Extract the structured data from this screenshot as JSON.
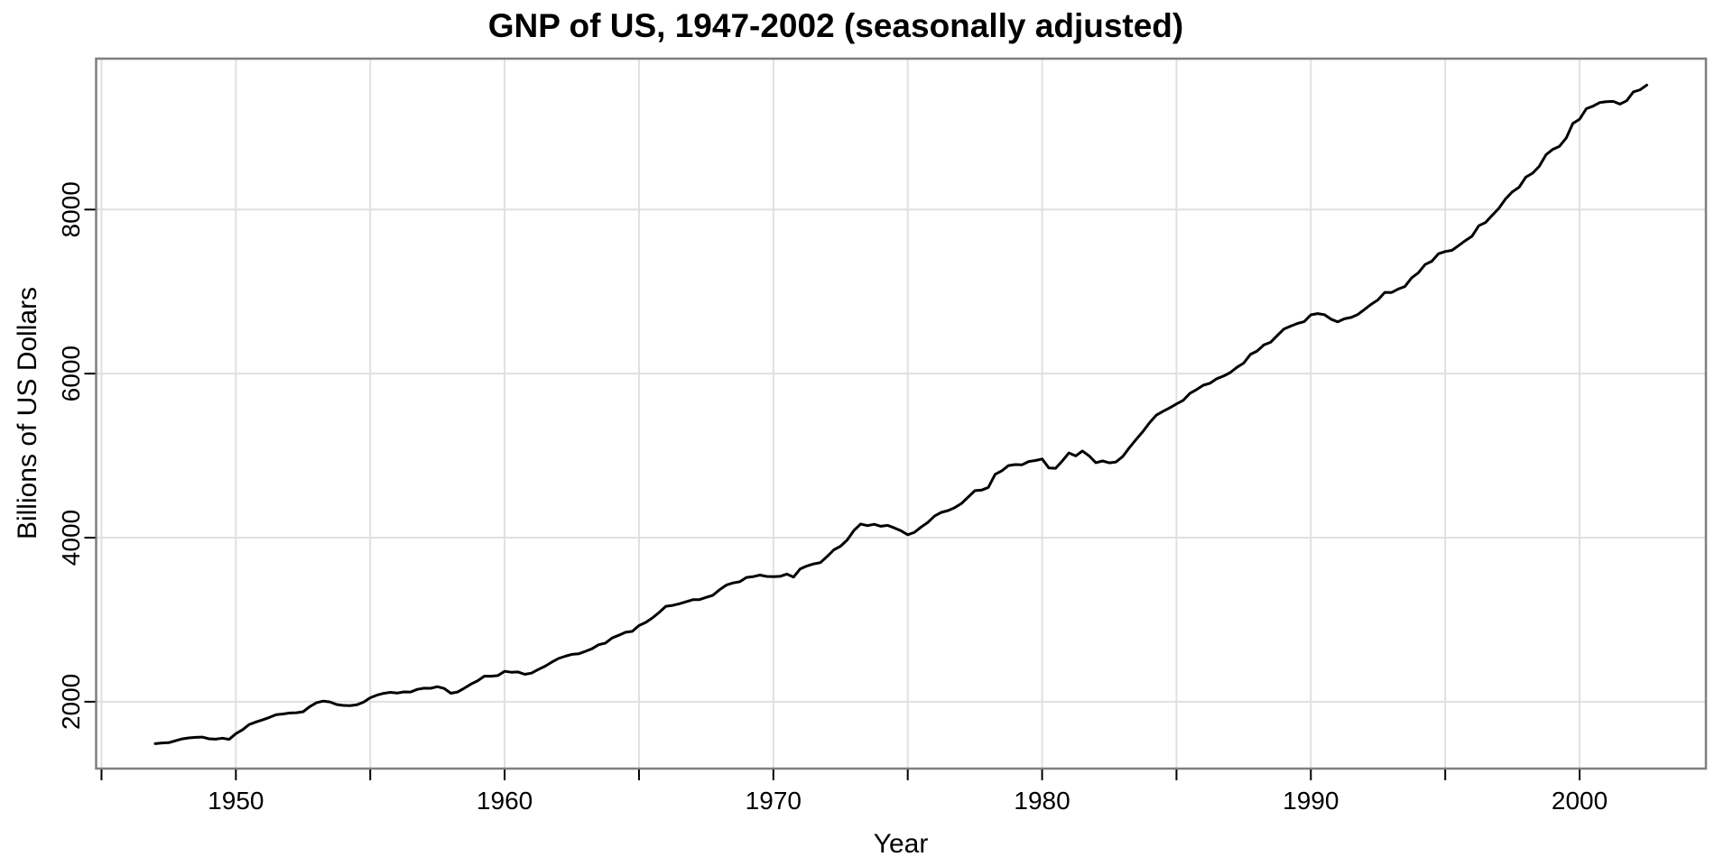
{
  "chart_data": {
    "type": "line",
    "title": "GNP of US, 1947-2002 (seasonally adjusted)",
    "xlabel": "Year",
    "ylabel": "Billions of US Dollars",
    "frequency": "quarterly",
    "x_start": 1947.0,
    "x_step": 0.25,
    "x_end": 2002.5,
    "n_points": 223,
    "xlim": [
      1944.8,
      2004.7
    ],
    "ylim": [
      1185,
      9840
    ],
    "x_ticks_all": [
      1945,
      1950,
      1955,
      1960,
      1965,
      1970,
      1975,
      1980,
      1985,
      1990,
      1995,
      2000
    ],
    "x_ticks_labeled": [
      1950,
      1960,
      1970,
      1980,
      1990,
      2000
    ],
    "y_ticks": [
      2000,
      4000,
      6000,
      8000
    ],
    "grid": {
      "color": "#e0e0e0",
      "x_lines": [
        1945,
        1950,
        1955,
        1960,
        1965,
        1970,
        1975,
        1980,
        1985,
        1990,
        1995,
        2000
      ],
      "y_lines": [
        2000,
        4000,
        6000,
        8000
      ]
    },
    "frame_color": "#7f7f7f",
    "background": "#ffffff",
    "series": [
      {
        "name": "GNP",
        "color": "#000000",
        "values": [
          1488.9,
          1496.9,
          1500.5,
          1524.2,
          1546.6,
          1559.3,
          1565.1,
          1568.7,
          1548.4,
          1543.1,
          1555.4,
          1541.2,
          1611.1,
          1658.8,
          1723.2,
          1753.9,
          1780.2,
          1808.6,
          1842.6,
          1850.8,
          1861.9,
          1866.2,
          1878.0,
          1940.2,
          1988.5,
          2007.8,
          1997.7,
          1966.2,
          1955.0,
          1952.1,
          1962.4,
          1994.9,
          2048.5,
          2080.6,
          2102.0,
          2114.8,
          2105.2,
          2120.0,
          2118.9,
          2150.4,
          2164.5,
          2163.7,
          2183.2,
          2162.0,
          2103.4,
          2118.5,
          2165.4,
          2215.4,
          2256.7,
          2312.5,
          2310.9,
          2319.2,
          2370.9,
          2359.6,
          2362.7,
          2334.4,
          2348.9,
          2392.4,
          2432.6,
          2482.0,
          2527.1,
          2554.4,
          2577.0,
          2584.0,
          2613.6,
          2645.9,
          2694.5,
          2714.8,
          2777.0,
          2809.9,
          2847.1,
          2857.2,
          2928.5,
          2966.1,
          3022.0,
          3089.2,
          3163.5,
          3174.0,
          3194.2,
          3218.5,
          3243.2,
          3245.3,
          3272.1,
          3297.1,
          3365.5,
          3421.9,
          3448.3,
          3462.4,
          3515.0,
          3525.1,
          3544.4,
          3527.8,
          3524.4,
          3528.2,
          3555.7,
          3519.9,
          3619.4,
          3655.3,
          3680.2,
          3695.5,
          3770.1,
          3852.0,
          3895.4,
          3972.8,
          4087.9,
          4166.0,
          4146.5,
          4162.6,
          4139.3,
          4150.1,
          4119.5,
          4083.4,
          4035.8,
          4065.3,
          4130.5,
          4185.7,
          4265.9,
          4308.8,
          4330.2,
          4366.5,
          4417.2,
          4495.0,
          4573.6,
          4580.1,
          4612.8,
          4772.3,
          4815.6,
          4879.5,
          4891.4,
          4888.0,
          4928.1,
          4940.8,
          4958.9,
          4850.3,
          4845.7,
          4935.6,
          5033.1,
          4997.2,
          5056.8,
          4997.1,
          4914.3,
          4935.5,
          4912.1,
          4922.7,
          4989.1,
          5097.4,
          5198.5,
          5293.7,
          5402.3,
          5493.8,
          5541.3,
          5583.1,
          5629.7,
          5673.8,
          5758.6,
          5806.0,
          5858.9,
          5883.3,
          5937.9,
          5969.5,
          6013.3,
          6077.2,
          6128.1,
          6234.4,
          6275.9,
          6349.8,
          6382.3,
          6465.2,
          6543.8,
          6579.4,
          6610.6,
          6633.5,
          6716.3,
          6731.7,
          6719.4,
          6664.2,
          6631.4,
          6668.5,
          6684.9,
          6720.9,
          6783.3,
          6846.8,
          6899.7,
          6990.6,
          6988.7,
          7031.2,
          7062.0,
          7168.7,
          7229.4,
          7330.2,
          7370.2,
          7461.1,
          7488.7,
          7503.3,
          7561.4,
          7621.9,
          7676.4,
          7802.9,
          7841.9,
          7931.3,
          8016.4,
          8131.9,
          8216.6,
          8272.9,
          8396.3,
          8442.9,
          8528.5,
          8667.9,
          8733.5,
          8771.2,
          8871.5,
          9049.9,
          9102.5,
          9229.4,
          9260.1,
          9303.9,
          9315.0,
          9318.9,
          9285.8,
          9326.2,
          9434.5,
          9460.7,
          9518.2
        ]
      }
    ]
  }
}
